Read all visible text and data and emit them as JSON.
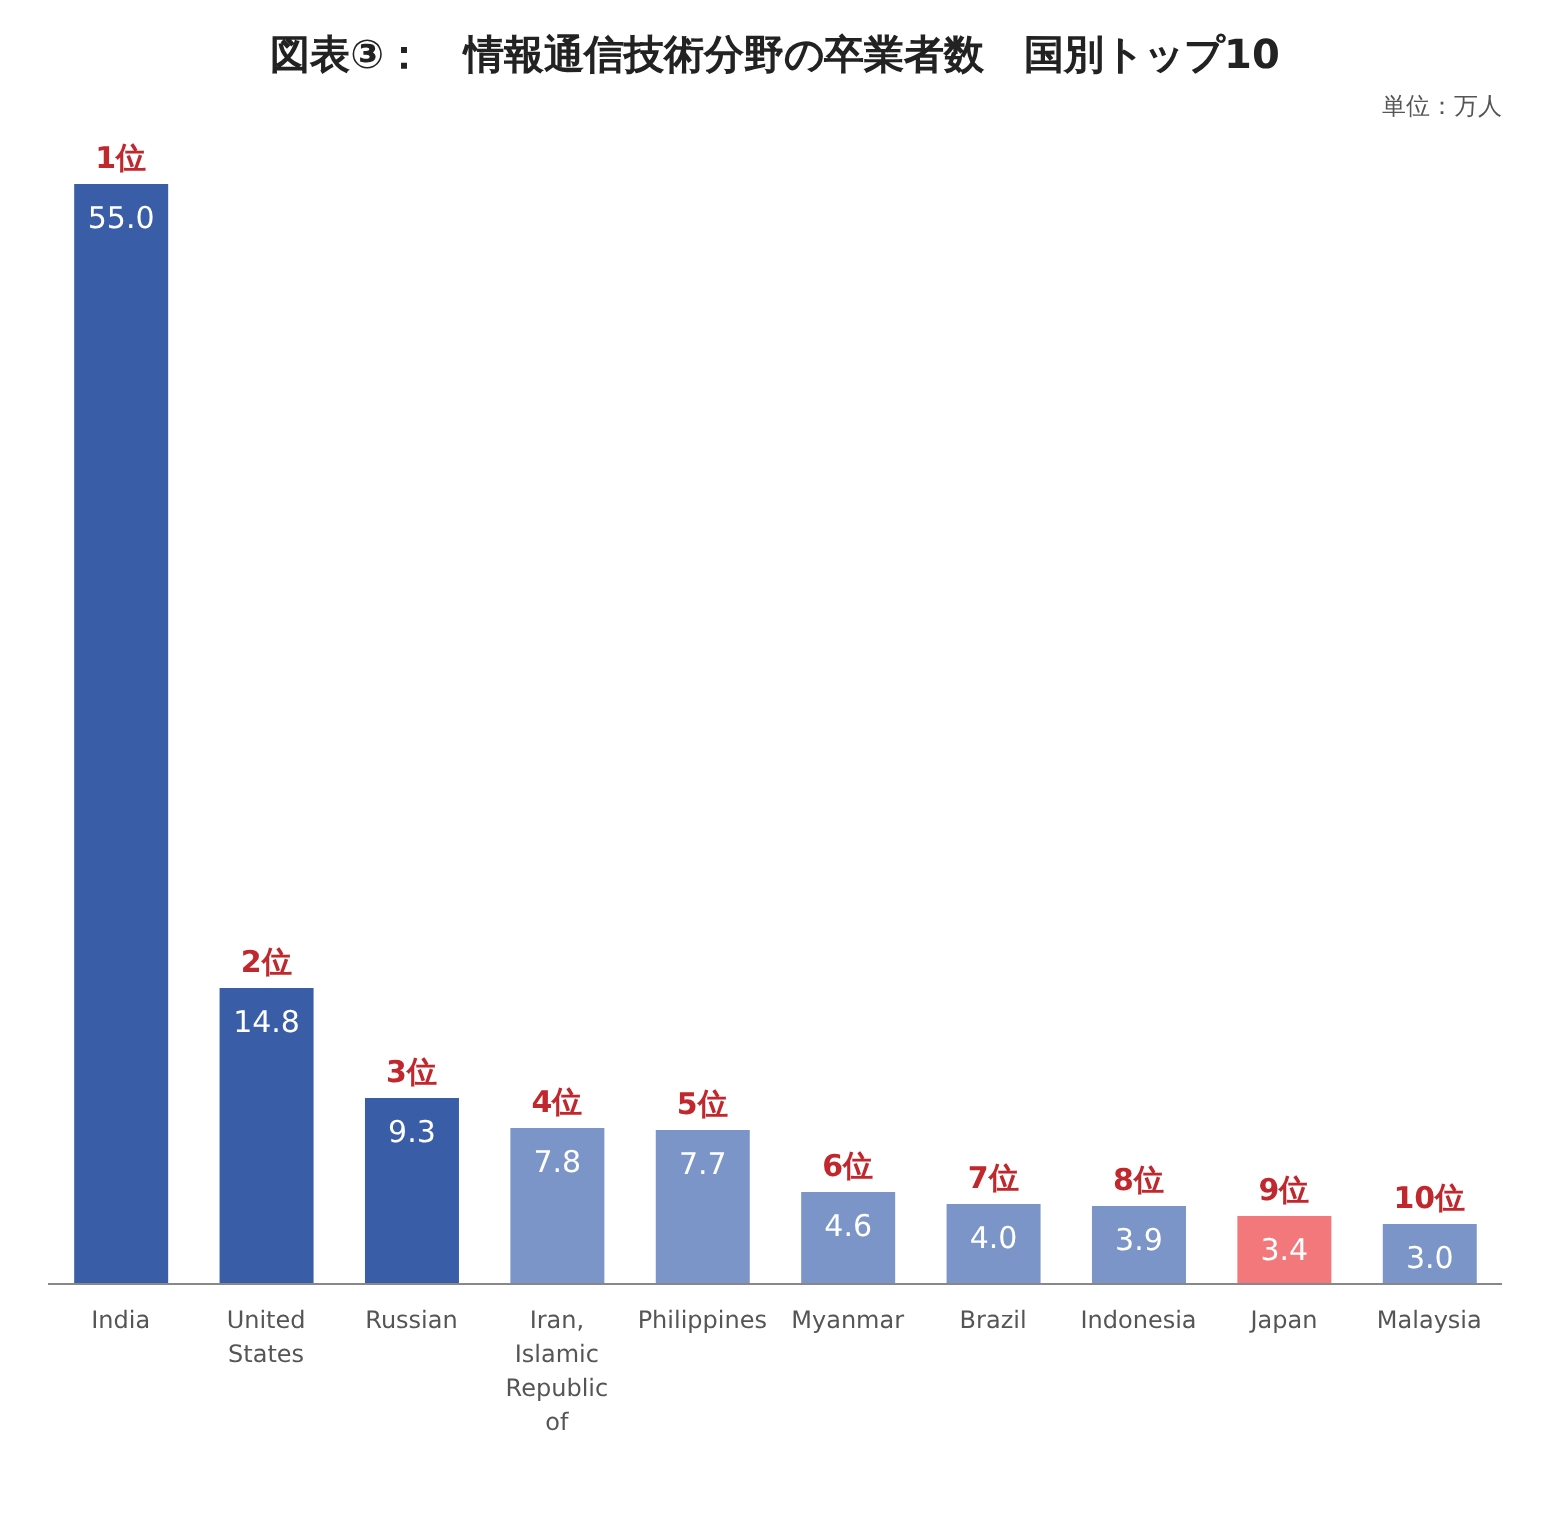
{
  "chart_data": {
    "type": "bar",
    "title": "図表③：　情報通信技術分野の卒業者数　国別トップ10",
    "categories": [
      "India",
      "United States",
      "Russian",
      "Iran, Islamic Republic of",
      "Philippines",
      "Myanmar",
      "Brazil",
      "Indonesia",
      "Japan",
      "Malaysia"
    ],
    "values": [
      55.0,
      14.8,
      9.3,
      7.8,
      7.7,
      4.6,
      4.0,
      3.9,
      3.4,
      3.0
    ],
    "colors": [
      "#3a5da8",
      "#3a5da8",
      "#3a5da8",
      "#7b95c9",
      "#7b95c9",
      "#7b95c9",
      "#7b95c9",
      "#7b95c9",
      "#f2787c",
      "#7b95c9"
    ],
    "value_labels": [
      "55.0",
      "14.8",
      "9.3",
      "7.8",
      "7.7",
      "4.6",
      "4.0",
      "3.9",
      "3.4",
      "3.0"
    ],
    "annotations": [
      "単位：万人",
      {
        "text": "1位",
        "x": "India",
        "y": 55.0
      },
      {
        "text": "2位",
        "x": "United States",
        "y": 14.8
      },
      {
        "text": "3位",
        "x": "Russian",
        "y": 9.3
      },
      {
        "text": "4位",
        "x": "Iran, Islamic Republic of",
        "y": 7.8
      },
      {
        "text": "5位",
        "x": "Philippines",
        "y": 7.7
      },
      {
        "text": "6位",
        "x": "Myanmar",
        "y": 4.6
      },
      {
        "text": "7位",
        "x": "Brazil",
        "y": 4.0
      },
      {
        "text": "8位",
        "x": "Indonesia",
        "y": 3.9
      },
      {
        "text": "9位",
        "x": "Japan",
        "y": 3.4
      },
      {
        "text": "10位",
        "x": "Malaysia",
        "y": 3.0
      }
    ]
  }
}
